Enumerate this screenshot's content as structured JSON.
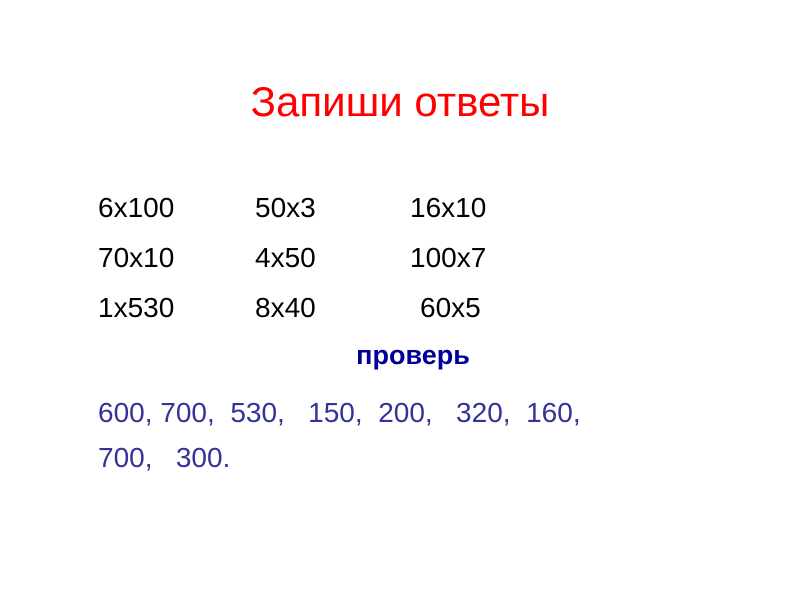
{
  "title": "Запиши ответы",
  "rows": [
    [
      "6x100",
      "50x3",
      "16x10"
    ],
    [
      "70x10",
      "4x50",
      "100x7"
    ],
    [
      "1x530",
      "8x40",
      "60x5"
    ]
  ],
  "check_label": "проверь",
  "answers": "600, 700,  530,   150,  200,   320,  160,\n700,   300.",
  "colors": {
    "title": "#ff0000",
    "check": "#000099",
    "answers": "#333399"
  }
}
